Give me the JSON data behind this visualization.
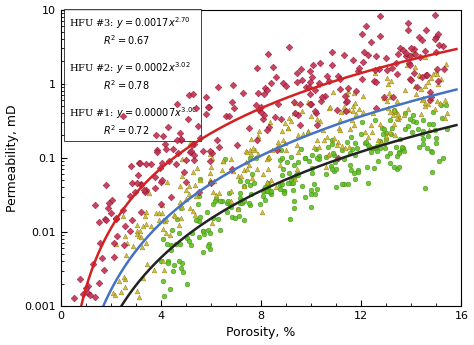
{
  "xlabel": "Porosity, %",
  "ylabel": "Permeability, mD",
  "xlim": [
    0,
    16
  ],
  "ylim_log": [
    0.001,
    10
  ],
  "hfu3": {
    "a": 0.0017,
    "b": 2.7,
    "r2": 0.67,
    "curve_color": "#d42020",
    "scatter_color": "#c03050",
    "marker": "D"
  },
  "hfu2": {
    "a": 0.0002,
    "b": 3.02,
    "r2": 0.78,
    "curve_color": "#4472c4",
    "scatter_color": "#c8b830",
    "marker": "^"
  },
  "hfu1": {
    "a": 7e-05,
    "b": 3.0,
    "r2": 0.72,
    "curve_color": "#222222",
    "scatter_color": "#60c020",
    "marker": "o"
  },
  "background_color": "#ffffff",
  "n_hfu3": 250,
  "n_hfu2": 250,
  "n_hfu1": 250
}
